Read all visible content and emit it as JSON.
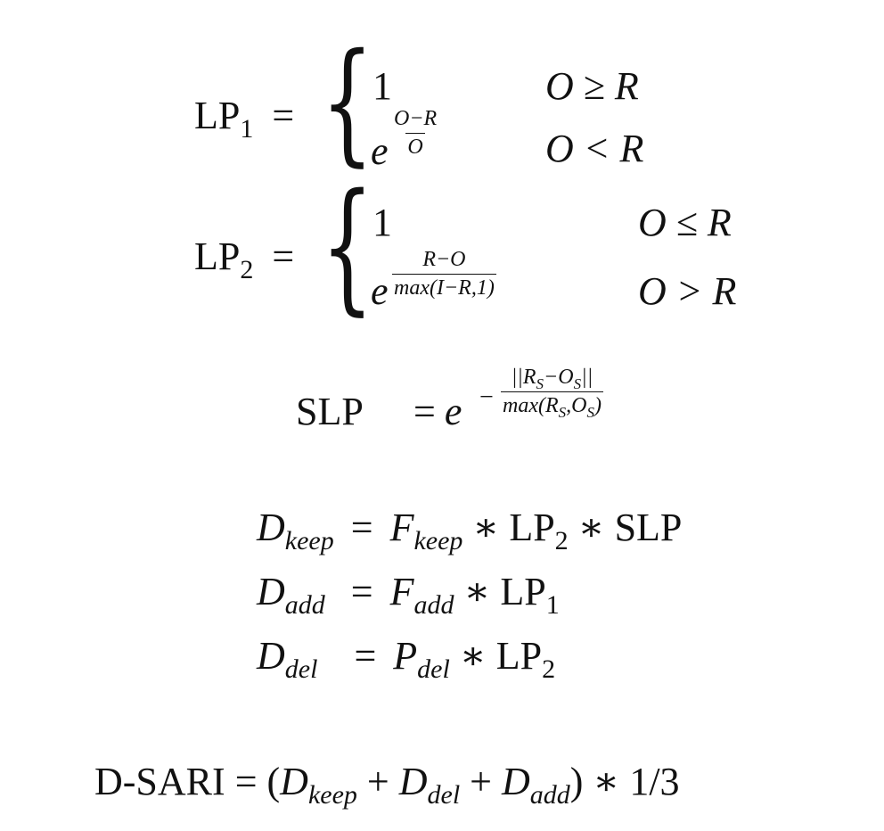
{
  "lp1": {
    "label": "LP",
    "index": "1",
    "eq": "=",
    "case1_value": "1",
    "case1_cond": "O ≥ R",
    "case2_base": "e",
    "case2_num": "O−R",
    "case2_den": "O",
    "case2_cond": "O < R"
  },
  "lp2": {
    "label": "LP",
    "index": "2",
    "eq": "=",
    "case1_value": "1",
    "case1_cond": "O ≤ R",
    "case2_base": "e",
    "case2_num": "R−O",
    "case2_den": "max(I−R,1)",
    "case2_cond": "O > R"
  },
  "slp": {
    "label": "SLP",
    "eq": "=",
    "base": "e",
    "minus": "−",
    "num_open": "||R",
    "num_mid": "−O",
    "num_close": "||",
    "s": "S",
    "den_open": "max(R",
    "den_mid": ",O",
    "den_close": ")"
  },
  "dkeep": {
    "lhs": "D",
    "lhs_sub": "keep",
    "eq": "=",
    "f": "F",
    "f_sub": "keep",
    "rest1": " ∗ LP",
    "rest1_sub": "2",
    "rest2": " ∗ SLP"
  },
  "dadd": {
    "lhs": "D",
    "lhs_sub": "add",
    "eq": "=",
    "f": "F",
    "f_sub": "add",
    "rest1": " ∗ LP",
    "rest1_sub": "1"
  },
  "ddel": {
    "lhs": "D",
    "lhs_sub": "del",
    "eq": "=",
    "f": "P",
    "f_sub": "del",
    "rest1": " ∗ LP",
    "rest1_sub": "2"
  },
  "dsari": {
    "label": "D-SARI",
    "eq": " = (",
    "t1": "D",
    "t1_sub": "keep",
    "plus1": " + ",
    "t2": "D",
    "t2_sub": "del",
    "plus2": " + ",
    "t3": "D",
    "t3_sub": "add",
    "tail": ") ∗ 1/3"
  }
}
